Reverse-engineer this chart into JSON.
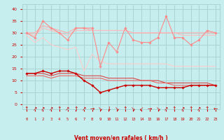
{
  "x": [
    0,
    1,
    2,
    3,
    4,
    5,
    6,
    7,
    8,
    9,
    10,
    11,
    12,
    13,
    14,
    15,
    16,
    17,
    18,
    19,
    20,
    21,
    22,
    23
  ],
  "background_color": "#c6eeee",
  "grid_color": "#aad4d4",
  "xlabel": "Vent moyen/en rafales ( km/h )",
  "xlabel_color": "#cc0000",
  "tick_color": "#cc0000",
  "ylim": [
    -2,
    42
  ],
  "yticks": [
    0,
    5,
    10,
    15,
    20,
    25,
    30,
    35,
    40
  ],
  "xlim": [
    -0.5,
    23.5
  ],
  "lines": [
    {
      "y": [
        30,
        28,
        35,
        32,
        30,
        27,
        32,
        32,
        32,
        16,
        26,
        22,
        32,
        27,
        26,
        26,
        28,
        37,
        28,
        28,
        25,
        27,
        31,
        30
      ],
      "color": "#ff8888",
      "linewidth": 0.8,
      "marker": "D",
      "markersize": 1.8,
      "zorder": 5
    },
    {
      "y": [
        30,
        30,
        33,
        32,
        31,
        30,
        32,
        32,
        31,
        31,
        31,
        31,
        31,
        30,
        30,
        30,
        30,
        30,
        30,
        30,
        30,
        30,
        30,
        30
      ],
      "color": "#ffaaaa",
      "linewidth": 0.8,
      "marker": null,
      "markersize": 0,
      "zorder": 3
    },
    {
      "y": [
        30,
        29,
        32,
        31,
        30,
        29,
        31,
        31,
        31,
        31,
        31,
        31,
        31,
        30,
        30,
        30,
        30,
        30,
        30,
        29,
        29,
        29,
        29,
        29
      ],
      "color": "#ffbbbb",
      "linewidth": 0.8,
      "marker": null,
      "markersize": 0,
      "zorder": 3
    },
    {
      "y": [
        29,
        26,
        28,
        25,
        24,
        23,
        24,
        14,
        21,
        18,
        17,
        17,
        17,
        17,
        17,
        17,
        17,
        17,
        16,
        16,
        16,
        16,
        16,
        16
      ],
      "color": "#ffcccc",
      "linewidth": 0.8,
      "marker": null,
      "markersize": 0,
      "zorder": 2
    },
    {
      "y": [
        13,
        13,
        14,
        13,
        14,
        14,
        13,
        10,
        8,
        5,
        6,
        7,
        8,
        8,
        8,
        8,
        7,
        7,
        7,
        7,
        8,
        8,
        8,
        8
      ],
      "color": "#cc0000",
      "linewidth": 1.0,
      "marker": "D",
      "markersize": 1.8,
      "zorder": 6
    },
    {
      "y": [
        13,
        13,
        13,
        12,
        13,
        13,
        13,
        12,
        12,
        12,
        11,
        11,
        11,
        11,
        10,
        10,
        10,
        9,
        9,
        9,
        9,
        9,
        9,
        8
      ],
      "color": "#dd4444",
      "linewidth": 0.8,
      "marker": null,
      "markersize": 0,
      "zorder": 4
    },
    {
      "y": [
        12,
        12,
        12,
        11,
        12,
        12,
        12,
        11,
        11,
        11,
        10,
        10,
        10,
        10,
        10,
        10,
        9,
        9,
        8,
        8,
        8,
        8,
        8,
        8
      ],
      "color": "#ee6666",
      "linewidth": 0.8,
      "marker": null,
      "markersize": 0,
      "zorder": 4
    }
  ],
  "wind_symbols": [
    "↑",
    "↗",
    "↗",
    "↗",
    "↑",
    "↗",
    "↑",
    "↗",
    "→",
    "↘",
    "↓",
    "↘",
    "↑",
    "↘",
    "↙",
    "→",
    "↘",
    "↗",
    "↑",
    "↗",
    "↑",
    "↗",
    "↑",
    "←"
  ],
  "wind_color": "#cc0000",
  "wind_fontsize": 5.5
}
